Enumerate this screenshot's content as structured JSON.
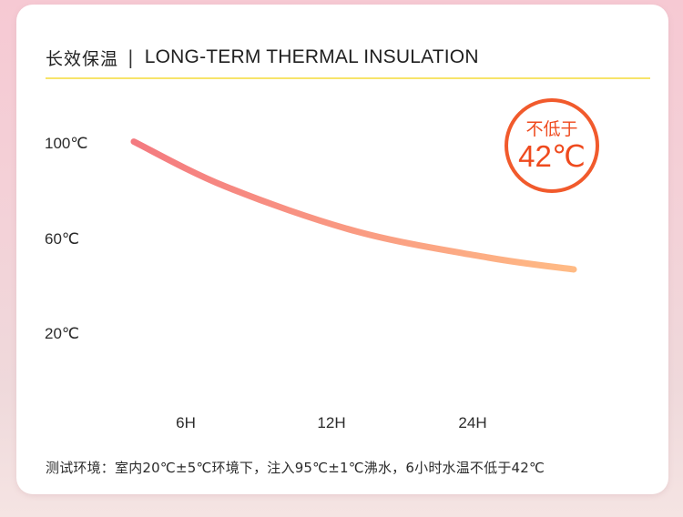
{
  "header": {
    "title_cn": "长效保温",
    "separator": "|",
    "title_en": "LONG-TERM THERMAL INSULATION"
  },
  "badge": {
    "label": "不低于",
    "value": "42℃"
  },
  "footnote": "测试环境：室内20℃±5℃环境下，注入95℃±1℃沸水，6小时水温不低于42℃",
  "colors": {
    "curve_start": "#f47a80",
    "curve_end": "#ffbb85",
    "badge_ring": "#f15a2c",
    "rule": "#f7e46a"
  },
  "chart_data": {
    "type": "line",
    "title": "LONG-TERM THERMAL INSULATION",
    "y_ticks": [
      "100℃",
      "60℃",
      "20℃"
    ],
    "y_tick_values": [
      100,
      60,
      20
    ],
    "x_ticks": [
      "6H",
      "12H",
      "24H"
    ],
    "x_tick_positions": [
      1,
      2,
      3
    ],
    "x_range": [
      0.3,
      3.65
    ],
    "ylim": [
      20,
      100
    ],
    "grid": false,
    "legend": "none",
    "series": [
      {
        "x": [
          0.3,
          1.0,
          2.0,
          3.0,
          3.65
        ],
        "y": [
          99,
          80,
          61,
          50,
          45
        ]
      }
    ],
    "annotation": "不低于 42℃"
  }
}
